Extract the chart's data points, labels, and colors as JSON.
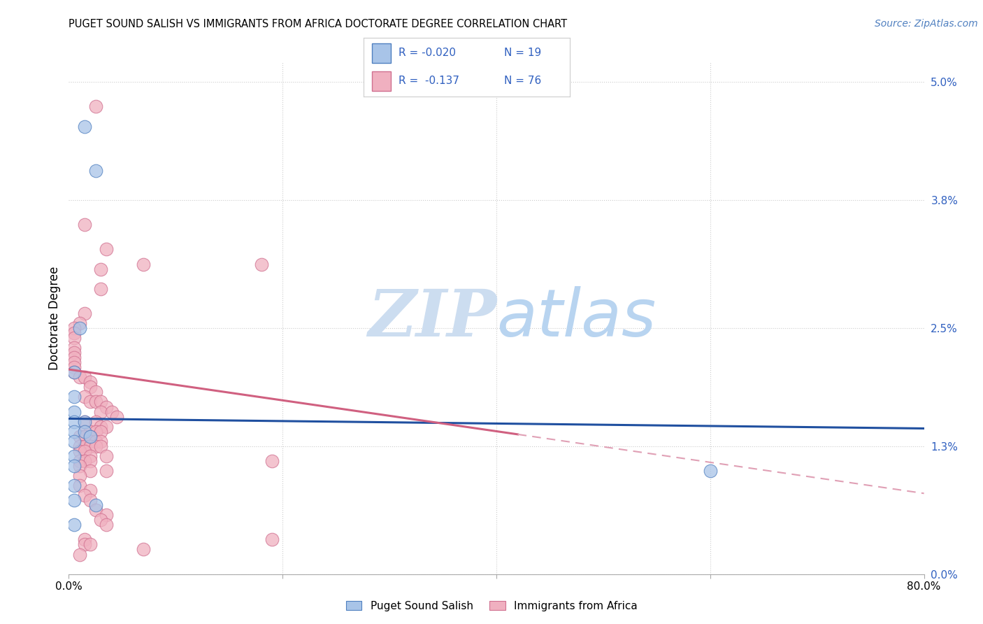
{
  "title": "PUGET SOUND SALISH VS IMMIGRANTS FROM AFRICA DOCTORATE DEGREE CORRELATION CHART",
  "source": "Source: ZipAtlas.com",
  "ylabel": "Doctorate Degree",
  "ytick_vals": [
    0.0,
    1.3,
    2.5,
    3.8,
    5.0
  ],
  "ytick_labels": [
    "0.0%",
    "1.3%",
    "2.5%",
    "3.8%",
    "5.0%"
  ],
  "xtick_vals": [
    0.0,
    20.0,
    40.0,
    60.0,
    80.0
  ],
  "xtick_labels": [
    "0.0%",
    "",
    "",
    "",
    "80.0%"
  ],
  "xlim": [
    0.0,
    80.0
  ],
  "ylim": [
    0.0,
    5.2
  ],
  "color_blue_fill": "#a8c4e8",
  "color_blue_edge": "#5080c0",
  "color_blue_line": "#2050a0",
  "color_pink_fill": "#f0b0c0",
  "color_pink_edge": "#d07090",
  "color_pink_line": "#d06080",
  "color_pink_dashed": "#e0a0b5",
  "color_grid": "#cccccc",
  "watermark_color": "#ccddf0",
  "blue_line_x0": 0.0,
  "blue_line_x1": 80.0,
  "blue_line_y0": 1.58,
  "blue_line_y1": 1.48,
  "pink_solid_x0": 0.0,
  "pink_solid_x1": 42.0,
  "pink_solid_y0": 2.08,
  "pink_solid_y1": 1.42,
  "pink_dash_x0": 42.0,
  "pink_dash_x1": 80.0,
  "pink_dash_y0": 1.42,
  "pink_dash_y1": 0.82,
  "blue_points": [
    [
      1.5,
      4.55
    ],
    [
      2.5,
      4.1
    ],
    [
      1.0,
      2.5
    ],
    [
      0.5,
      2.05
    ],
    [
      0.5,
      1.8
    ],
    [
      0.5,
      1.65
    ],
    [
      0.5,
      1.55
    ],
    [
      0.5,
      1.45
    ],
    [
      0.5,
      1.35
    ],
    [
      0.5,
      1.2
    ],
    [
      0.5,
      1.1
    ],
    [
      1.5,
      1.55
    ],
    [
      1.5,
      1.45
    ],
    [
      2.0,
      1.4
    ],
    [
      0.5,
      0.9
    ],
    [
      0.5,
      0.75
    ],
    [
      2.5,
      0.7
    ],
    [
      0.5,
      0.5
    ],
    [
      60.0,
      1.05
    ]
  ],
  "pink_points": [
    [
      2.5,
      4.75
    ],
    [
      1.5,
      3.55
    ],
    [
      3.5,
      3.3
    ],
    [
      3.0,
      3.1
    ],
    [
      18.0,
      3.15
    ],
    [
      7.0,
      3.15
    ],
    [
      3.0,
      2.9
    ],
    [
      1.5,
      2.65
    ],
    [
      1.0,
      2.55
    ],
    [
      0.5,
      2.5
    ],
    [
      0.5,
      2.45
    ],
    [
      0.5,
      2.4
    ],
    [
      0.5,
      2.3
    ],
    [
      0.5,
      2.25
    ],
    [
      0.5,
      2.2
    ],
    [
      0.5,
      2.15
    ],
    [
      0.5,
      2.1
    ],
    [
      0.5,
      2.05
    ],
    [
      1.0,
      2.0
    ],
    [
      1.5,
      2.0
    ],
    [
      2.0,
      1.95
    ],
    [
      2.0,
      1.9
    ],
    [
      2.5,
      1.85
    ],
    [
      1.5,
      1.8
    ],
    [
      2.0,
      1.75
    ],
    [
      2.5,
      1.75
    ],
    [
      3.0,
      1.75
    ],
    [
      3.5,
      1.7
    ],
    [
      3.0,
      1.65
    ],
    [
      4.0,
      1.65
    ],
    [
      4.5,
      1.6
    ],
    [
      1.5,
      1.55
    ],
    [
      2.5,
      1.55
    ],
    [
      3.0,
      1.5
    ],
    [
      3.5,
      1.5
    ],
    [
      1.5,
      1.45
    ],
    [
      2.0,
      1.45
    ],
    [
      2.5,
      1.45
    ],
    [
      3.0,
      1.45
    ],
    [
      1.0,
      1.4
    ],
    [
      1.5,
      1.4
    ],
    [
      2.0,
      1.4
    ],
    [
      2.0,
      1.35
    ],
    [
      2.5,
      1.35
    ],
    [
      3.0,
      1.35
    ],
    [
      1.0,
      1.3
    ],
    [
      1.5,
      1.3
    ],
    [
      2.0,
      1.3
    ],
    [
      2.5,
      1.3
    ],
    [
      3.0,
      1.3
    ],
    [
      1.0,
      1.25
    ],
    [
      1.5,
      1.25
    ],
    [
      2.0,
      1.2
    ],
    [
      3.5,
      1.2
    ],
    [
      1.0,
      1.15
    ],
    [
      1.5,
      1.15
    ],
    [
      2.0,
      1.15
    ],
    [
      1.0,
      1.1
    ],
    [
      2.0,
      1.05
    ],
    [
      1.0,
      1.0
    ],
    [
      19.0,
      1.15
    ],
    [
      3.5,
      1.05
    ],
    [
      1.0,
      0.9
    ],
    [
      2.0,
      0.85
    ],
    [
      1.5,
      0.8
    ],
    [
      2.0,
      0.75
    ],
    [
      2.5,
      0.65
    ],
    [
      3.5,
      0.6
    ],
    [
      3.0,
      0.55
    ],
    [
      3.5,
      0.5
    ],
    [
      19.0,
      0.35
    ],
    [
      1.5,
      0.35
    ],
    [
      1.5,
      0.3
    ],
    [
      2.0,
      0.3
    ],
    [
      7.0,
      0.25
    ],
    [
      1.0,
      0.2
    ]
  ]
}
